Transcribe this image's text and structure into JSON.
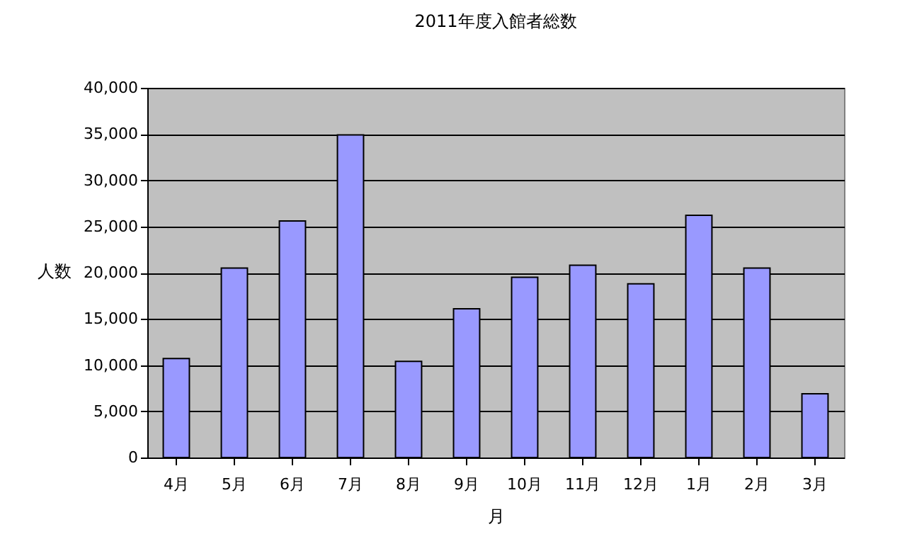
{
  "chart_data": {
    "type": "bar",
    "title": "2011年度入館者総数",
    "xlabel": "月",
    "ylabel": "人数",
    "categories": [
      "4月",
      "5月",
      "6月",
      "7月",
      "8月",
      "9月",
      "10月",
      "11月",
      "12月",
      "1月",
      "2月",
      "3月"
    ],
    "series": [
      {
        "color": "#9999ff",
        "values": [
          10700,
          20500,
          25600,
          34900,
          10400,
          16100,
          19500,
          20800,
          18800,
          26200,
          20500,
          6900
        ]
      }
    ],
    "ylim": [
      0,
      40000
    ],
    "yticks": [
      0,
      {
        "value": 5000,
        "label": "5,000"
      },
      {
        "value": 10000,
        "label": "10,000"
      },
      {
        "value": 15000,
        "label": "15,000"
      },
      {
        "value": 20000,
        "label": "20,000"
      },
      {
        "value": 25000,
        "label": "25,000"
      },
      {
        "value": 30000,
        "label": "30,000"
      },
      {
        "value": 35000,
        "label": "35,000"
      },
      {
        "value": 40000,
        "label": "40,000"
      }
    ],
    "grid": "y",
    "legend": false
  }
}
